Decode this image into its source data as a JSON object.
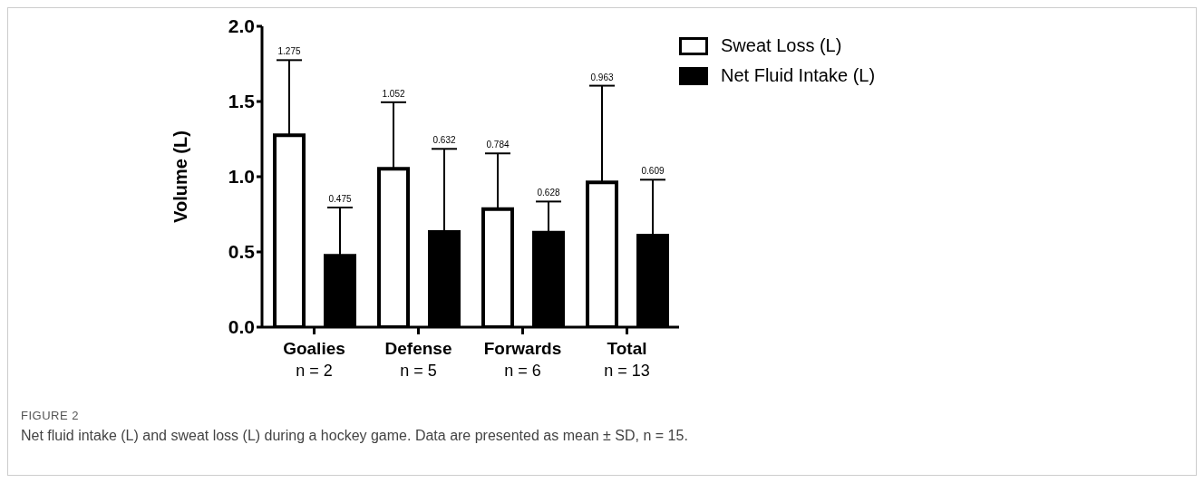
{
  "chart_data": {
    "type": "bar",
    "ylabel": "Volume (L)",
    "categories": [
      "Goalies\nn = 2",
      "Defense\nn = 5",
      "Forwards\nn = 6",
      "Total\nn = 13"
    ],
    "series": [
      {
        "name": "Sweat Loss (L)",
        "color": "#ffffff",
        "values": [
          1.275,
          1.052,
          0.784,
          0.963
        ],
        "errors": [
          [
            1.275,
            1.775
          ],
          [
            1.052,
            1.495
          ],
          [
            0.784,
            1.155
          ],
          [
            0.963,
            1.605
          ]
        ]
      },
      {
        "name": "Net Fluid Intake (L)",
        "color": "#000000",
        "values": [
          0.475,
          0.632,
          0.628,
          0.609
        ],
        "errors": [
          [
            0.475,
            0.795
          ],
          [
            0.632,
            1.185
          ],
          [
            0.628,
            0.835
          ],
          [
            0.609,
            0.98
          ]
        ]
      }
    ],
    "ylim": [
      0,
      2
    ],
    "yticks": [
      {
        "value": 0,
        "label": "0.0"
      },
      {
        "value": 0.5,
        "label": "0.5"
      },
      {
        "value": 1,
        "label": "1.0"
      },
      {
        "value": 1.5,
        "label": "1.5"
      },
      {
        "value": 2,
        "label": "2.0"
      }
    ],
    "legend": "top right",
    "grid": false,
    "annotations": [
      "1.275",
      "0.475",
      "1.052",
      "0.632",
      "0.784",
      "0.628",
      "0.963",
      "0.609",
      "FIGURE 2",
      "Net fluid intake (L) and sweat loss (L) during a hockey game. Data are presented as mean ± SD, n = 15."
    ]
  }
}
